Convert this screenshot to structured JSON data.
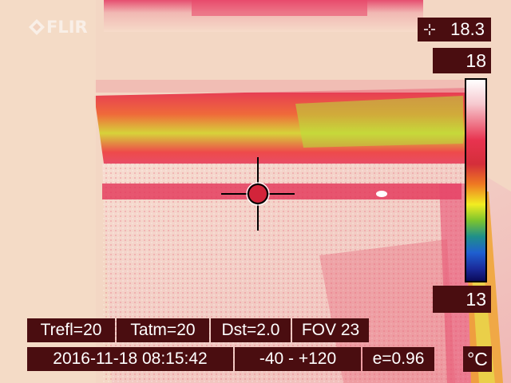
{
  "brand": {
    "logo_text": "FLIR",
    "logo_icon": "flir-logo-icon"
  },
  "spot_meter": {
    "icon": "crosshair-spot-icon",
    "value": "18.3"
  },
  "scale": {
    "max": "18",
    "min": "13",
    "unit": "°C",
    "palette": [
      "#ffffff",
      "#e8334f",
      "#ef7a22",
      "#f1ed21",
      "#7cc42e",
      "#1f5fd0",
      "#0a0a5a"
    ]
  },
  "parameters": {
    "trefl": "Trefl=20",
    "tatm": "Tatm=20",
    "dst": "Dst=2.0",
    "fov": "FOV 23"
  },
  "status": {
    "datetime": "2016-11-18 08:15:42",
    "range": "-40 -  +120",
    "emissivity": "e=0.96"
  },
  "colors": {
    "overlay_bg": "#4a0d10",
    "overlay_text": "#ffffff",
    "crosshair": "#000000",
    "spot_fill": "#d2243a"
  }
}
